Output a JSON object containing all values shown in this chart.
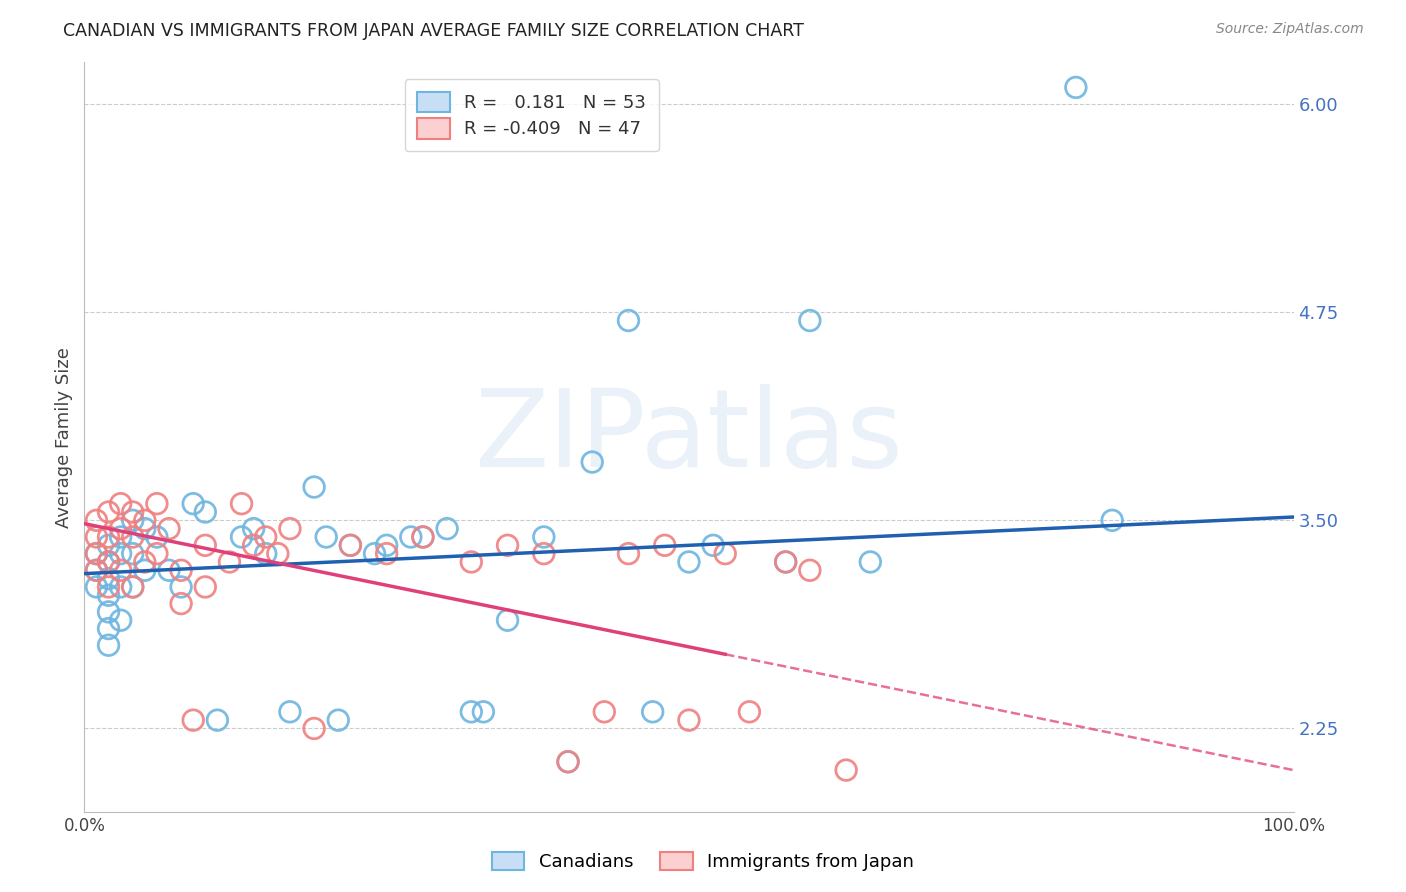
{
  "title": "CANADIAN VS IMMIGRANTS FROM JAPAN AVERAGE FAMILY SIZE CORRELATION CHART",
  "source": "Source: ZipAtlas.com",
  "ylabel": "Average Family Size",
  "watermark": "ZIPatlas",
  "xlim": [
    0,
    1
  ],
  "ylim": [
    1.75,
    6.25
  ],
  "yticks": [
    2.25,
    3.5,
    4.75,
    6.0
  ],
  "xtick_labels": [
    "0.0%",
    "",
    "",
    "",
    "",
    "100.0%"
  ],
  "canadians_color": "#6eb5e0",
  "japan_color": "#f08080",
  "canadian_line_color": "#2060b0",
  "japan_line_color": "#e0407a",
  "canada_R": 0.181,
  "canada_N": 53,
  "japan_R": -0.409,
  "japan_N": 47,
  "canadians_x": [
    0.01,
    0.01,
    0.01,
    0.02,
    0.02,
    0.02,
    0.02,
    0.02,
    0.02,
    0.02,
    0.03,
    0.03,
    0.03,
    0.03,
    0.04,
    0.04,
    0.04,
    0.05,
    0.05,
    0.06,
    0.07,
    0.08,
    0.09,
    0.1,
    0.11,
    0.13,
    0.14,
    0.15,
    0.17,
    0.19,
    0.2,
    0.21,
    0.22,
    0.24,
    0.25,
    0.27,
    0.28,
    0.3,
    0.32,
    0.33,
    0.35,
    0.38,
    0.4,
    0.42,
    0.45,
    0.47,
    0.5,
    0.52,
    0.58,
    0.6,
    0.65,
    0.82,
    0.85
  ],
  "canadians_y": [
    3.3,
    3.2,
    3.1,
    3.35,
    3.25,
    3.15,
    3.05,
    2.95,
    2.85,
    2.75,
    3.4,
    3.3,
    3.1,
    2.9,
    3.5,
    3.3,
    3.1,
    3.45,
    3.2,
    3.4,
    3.2,
    3.1,
    3.6,
    3.55,
    2.3,
    3.4,
    3.45,
    3.3,
    2.35,
    3.7,
    3.4,
    2.3,
    3.35,
    3.3,
    3.35,
    3.4,
    3.4,
    3.45,
    2.35,
    2.35,
    2.9,
    3.4,
    2.05,
    3.85,
    4.7,
    2.35,
    3.25,
    3.35,
    3.25,
    4.7,
    3.25,
    6.1,
    3.5
  ],
  "japan_x": [
    0.01,
    0.01,
    0.01,
    0.01,
    0.02,
    0.02,
    0.02,
    0.02,
    0.03,
    0.03,
    0.03,
    0.04,
    0.04,
    0.04,
    0.05,
    0.05,
    0.06,
    0.06,
    0.07,
    0.08,
    0.08,
    0.09,
    0.1,
    0.1,
    0.12,
    0.13,
    0.14,
    0.15,
    0.16,
    0.17,
    0.19,
    0.22,
    0.25,
    0.28,
    0.32,
    0.35,
    0.38,
    0.4,
    0.43,
    0.45,
    0.48,
    0.5,
    0.53,
    0.55,
    0.58,
    0.6,
    0.63
  ],
  "japan_y": [
    3.5,
    3.4,
    3.3,
    3.2,
    3.55,
    3.4,
    3.25,
    3.1,
    3.6,
    3.45,
    3.2,
    3.55,
    3.4,
    3.1,
    3.5,
    3.25,
    3.6,
    3.3,
    3.45,
    3.2,
    3.0,
    2.3,
    3.35,
    3.1,
    3.25,
    3.6,
    3.35,
    3.4,
    3.3,
    3.45,
    2.25,
    3.35,
    3.3,
    3.4,
    3.25,
    3.35,
    3.3,
    2.05,
    2.35,
    3.3,
    3.35,
    2.3,
    3.3,
    2.35,
    3.25,
    3.2,
    2.0
  ],
  "background_color": "#ffffff",
  "grid_color": "#cccccc",
  "canada_line_x0": 0.0,
  "canada_line_y0": 3.18,
  "canada_line_x1": 1.0,
  "canada_line_y1": 3.52,
  "japan_line_x0": 0.0,
  "japan_line_y0": 3.48,
  "japan_line_x1_solid": 0.53,
  "japan_line_x1": 1.0,
  "japan_line_y1": 2.0
}
